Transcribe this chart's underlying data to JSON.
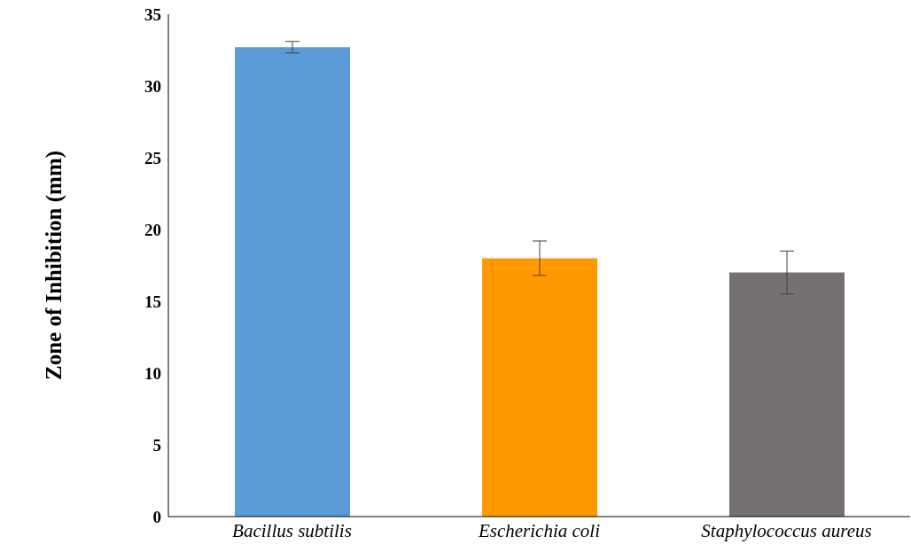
{
  "chart_data": {
    "type": "bar",
    "ylabel": "Zone of Inhibition (mm)",
    "categories": [
      "Bacillus subtilis",
      "Escherichia coli",
      "Staphylococcus aureus"
    ],
    "values": [
      32.7,
      18,
      17
    ],
    "colors": [
      "#5b9bd5",
      "#ff9900",
      "#767171"
    ],
    "errors": [
      0.4,
      1.2,
      1.5
    ],
    "ylim": [
      0,
      35
    ],
    "yticks": [
      0,
      5,
      10,
      15,
      20,
      25,
      30,
      35
    ]
  }
}
